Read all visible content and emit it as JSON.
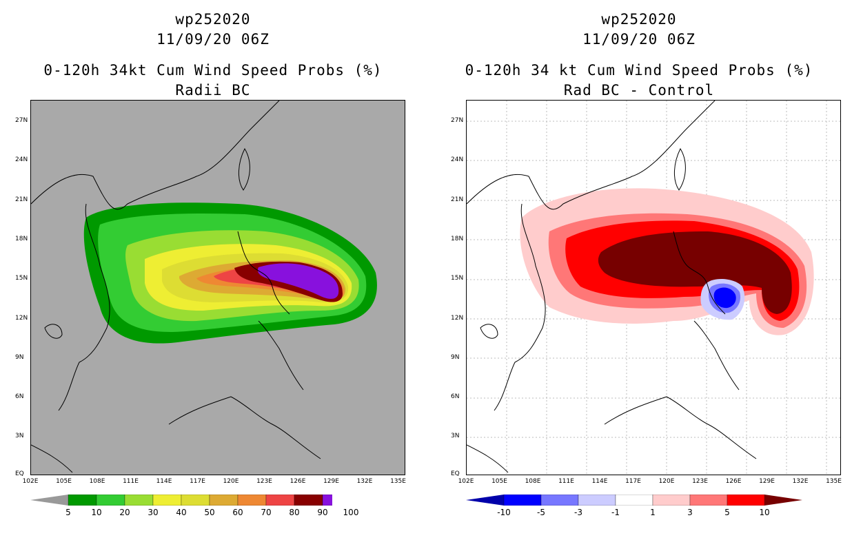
{
  "left_panel": {
    "title_id": "wp252020",
    "title_time": "11/09/20 06Z",
    "title_main": "0-120h 34kt Cum Wind Speed Probs (%)",
    "title_sub": "Radii BC",
    "lat_labels": [
      "27N",
      "24N",
      "21N",
      "18N",
      "15N",
      "12N",
      "9N",
      "6N",
      "3N",
      "EQ"
    ],
    "lon_labels": [
      "102E",
      "105E",
      "108E",
      "111E",
      "114E",
      "117E",
      "120E",
      "123E",
      "126E",
      "129E",
      "132E",
      "135E"
    ],
    "colorbar": {
      "colors": [
        "#009900",
        "#33cc33",
        "#99dd33",
        "#eeee33",
        "#dddd33",
        "#ddaa33",
        "#ee8833",
        "#ee4444",
        "#880000",
        "#8811dd"
      ],
      "labels": [
        "5",
        "10",
        "20",
        "30",
        "40",
        "50",
        "60",
        "70",
        "80",
        "90",
        "100"
      ]
    }
  },
  "right_panel": {
    "title_id": "wp252020",
    "title_time": "11/09/20 06Z",
    "title_main": "0-120h 34 kt Cum Wind Speed Probs (%)",
    "title_sub": "Rad BC - Control",
    "lat_labels": [
      "27N",
      "24N",
      "21N",
      "18N",
      "15N",
      "12N",
      "9N",
      "6N",
      "3N",
      "EQ"
    ],
    "lon_labels": [
      "102E",
      "105E",
      "108E",
      "111E",
      "114E",
      "117E",
      "120E",
      "123E",
      "126E",
      "129E",
      "132E",
      "135E"
    ],
    "colorbar": {
      "colors": [
        "#0000aa",
        "#0000ff",
        "#7777ff",
        "#ccccff",
        "#ffffff",
        "#ffcccc",
        "#ff7777",
        "#ff0000",
        "#770000"
      ],
      "labels": [
        "-10",
        "-5",
        "-3",
        "-1",
        "1",
        "3",
        "5",
        "10"
      ]
    }
  }
}
